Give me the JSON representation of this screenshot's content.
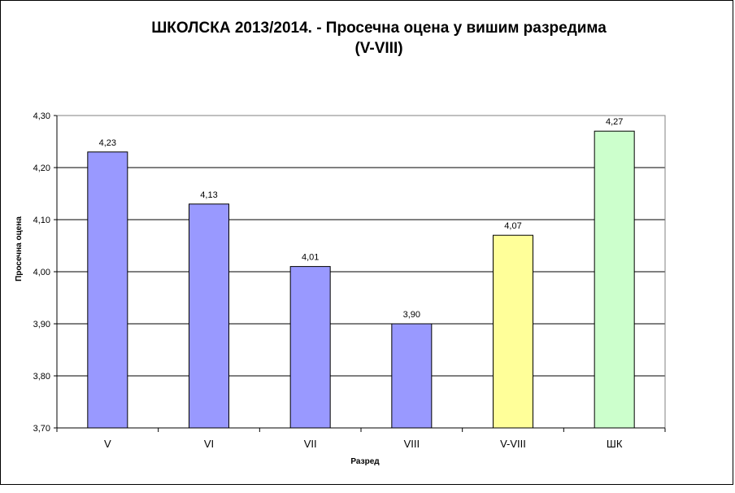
{
  "chart_data": {
    "type": "bar",
    "title_line1": "ШКОЛСКА 2013/2014. - Просечна  оцена у вишим разредима",
    "title_line2": "(V-VIII)",
    "xlabel": "Разред",
    "ylabel": "Просечна оцена",
    "categories": [
      "V",
      "VI",
      "VII",
      "VIII",
      "V-VIII",
      "ШК"
    ],
    "values": [
      4.23,
      4.13,
      4.01,
      3.9,
      4.07,
      4.27
    ],
    "data_labels": [
      "4,23",
      "4,13",
      "4,01",
      "3,90",
      "4,07",
      "4,27"
    ],
    "ylim": [
      3.7,
      4.3
    ],
    "yticks": [
      3.7,
      3.8,
      3.9,
      4.0,
      4.1,
      4.2,
      4.3
    ],
    "ytick_labels": [
      "3,70",
      "3,80",
      "3,90",
      "4,00",
      "4,10",
      "4,20",
      "4,30"
    ],
    "bar_colors": [
      "#9999ff",
      "#9999ff",
      "#9999ff",
      "#9999ff",
      "#ffff99",
      "#ccffcc"
    ],
    "grid": true,
    "legend": "none"
  }
}
